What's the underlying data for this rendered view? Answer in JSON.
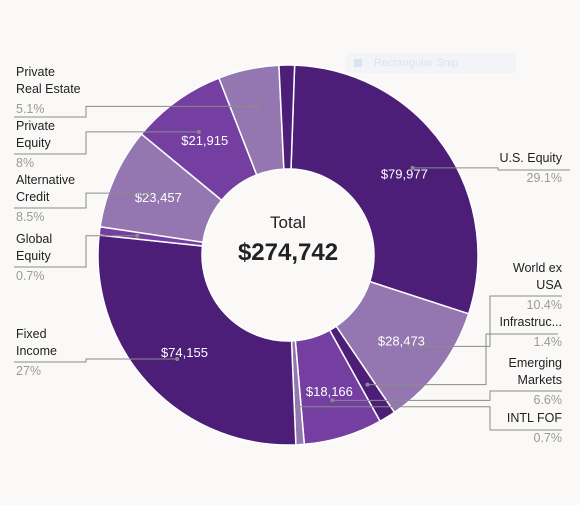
{
  "ghost_control": {
    "label": "Rectangular Snip"
  },
  "colors": {
    "dark": "#4c1e78",
    "mid": "#743fa0",
    "light": "#9477b1",
    "leader": "#8a8a8a",
    "label_text": "#222222",
    "pct_text": "#9a9a9a",
    "value_text": "#ffffff"
  },
  "chart_data": {
    "type": "donut",
    "center": {
      "title": "Total",
      "value": "$274,742"
    },
    "slices": [
      {
        "name": "U.S. Equity",
        "value_label": "$79,977",
        "percent": "29.1%",
        "share": 29.1,
        "color": "#4c1e78"
      },
      {
        "name": "World ex USA",
        "value_label": "$28,473",
        "percent": "10.4%",
        "share": 10.4,
        "color": "#9477b1"
      },
      {
        "name": "Infrastruc...",
        "value_label": "",
        "percent": "1.4%",
        "share": 1.4,
        "color": "#4c1e78"
      },
      {
        "name": "Emerging Markets",
        "value_label": "$18,166",
        "percent": "6.6%",
        "share": 6.6,
        "color": "#743fa0"
      },
      {
        "name": "INTL FOF",
        "value_label": "",
        "percent": "0.7%",
        "share": 0.7,
        "color": "#9477b1"
      },
      {
        "name": "Fixed Income",
        "value_label": "$74,155",
        "percent": "27%",
        "share": 27.0,
        "color": "#4c1e78"
      },
      {
        "name": "Global Equity",
        "value_label": "",
        "percent": "0.7%",
        "share": 0.7,
        "color": "#743fa0"
      },
      {
        "name": "Alternative Credit",
        "value_label": "$23,457",
        "percent": "8.5%",
        "share": 8.5,
        "color": "#9477b1"
      },
      {
        "name": "Private Equity",
        "value_label": "$21,915",
        "percent": "8%",
        "share": 8.0,
        "color": "#743fa0"
      },
      {
        "name": "Private Real Estate",
        "value_label": "",
        "percent": "5.1%",
        "share": 5.1,
        "color": "#9477b1"
      },
      {
        "name": "",
        "value_label": "",
        "percent": "",
        "share": 1.3,
        "color": "#4c1e78"
      }
    ]
  }
}
